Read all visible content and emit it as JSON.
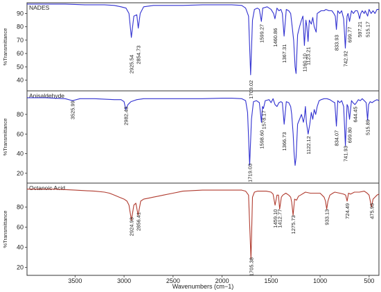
{
  "chart_data": [
    {
      "type": "line",
      "title": "NADES",
      "ylabel": "%Transmittance",
      "xlim": [
        3990,
        400
      ],
      "ylim": [
        32,
        98
      ],
      "yticks": [
        40,
        50,
        60,
        70,
        80,
        90
      ],
      "color": "#3030d0",
      "peaks": [
        {
          "x": 2925.54,
          "y": 59,
          "label": "2925.54"
        },
        {
          "x": 2854.73,
          "y": 66,
          "label": "2854.73"
        },
        {
          "x": 1709.02,
          "y": 40,
          "label": "1709.02"
        },
        {
          "x": 1599.27,
          "y": 82,
          "label": "1599.27"
        },
        {
          "x": 1460.86,
          "y": 79,
          "label": "1460.86"
        },
        {
          "x": 1367.31,
          "y": 67,
          "label": "1367.31"
        },
        {
          "x": 1160.1,
          "y": 60,
          "label": "1160.10"
        },
        {
          "x": 1123.21,
          "y": 65,
          "label": "1123.21"
        },
        {
          "x": 833.93,
          "y": 74,
          "label": "833.93"
        },
        {
          "x": 742.92,
          "y": 62,
          "label": "742.92"
        },
        {
          "x": 699.77,
          "y": 80,
          "label": "699.77"
        },
        {
          "x": 597.21,
          "y": 84,
          "label": "597.21"
        },
        {
          "x": 515.17,
          "y": 84,
          "label": "515.17"
        }
      ],
      "x": [
        3990,
        3800,
        3600,
        3400,
        3200,
        3100,
        3030,
        2980,
        2950,
        2925.54,
        2900,
        2870,
        2854.73,
        2835,
        2800,
        2700,
        2600,
        2400,
        2200,
        2000,
        1900,
        1800,
        1760,
        1730,
        1709.02,
        1690,
        1670,
        1640,
        1620,
        1599.27,
        1585,
        1540,
        1500,
        1475,
        1460.86,
        1440,
        1420,
        1400,
        1385,
        1367.31,
        1345,
        1320,
        1300,
        1285,
        1270,
        1255,
        1245,
        1230,
        1210,
        1190,
        1175,
        1160.1,
        1145,
        1135,
        1123.21,
        1110,
        1090,
        1075,
        1060,
        1040,
        1030,
        1010,
        990,
        960,
        940,
        910,
        880,
        860,
        845,
        833.93,
        820,
        800,
        780,
        760,
        742.92,
        725,
        715,
        699.77,
        680,
        660,
        640,
        620,
        610,
        597.21,
        585,
        570,
        550,
        540,
        515.17,
        500,
        480,
        460,
        440,
        420,
        400
      ],
      "values": [
        97,
        97,
        97,
        96.5,
        96.5,
        96,
        95,
        94,
        90,
        72,
        88,
        89,
        79,
        90,
        95,
        96,
        96,
        96,
        96.5,
        96.5,
        96.5,
        96,
        94,
        88,
        44,
        85,
        93,
        94,
        93,
        84,
        94,
        95,
        93,
        90,
        86,
        94,
        92,
        93,
        90,
        73,
        93,
        92,
        90,
        80,
        70,
        50,
        45,
        74,
        80,
        85,
        88,
        66,
        85,
        80,
        69,
        85,
        82,
        87,
        80,
        76,
        90,
        91,
        92,
        92,
        93,
        92,
        92,
        90,
        88,
        78,
        92,
        90,
        92,
        86,
        64,
        88,
        90,
        84,
        92,
        90,
        92,
        92,
        90,
        86,
        90,
        92,
        90,
        92,
        88,
        93,
        90,
        92,
        90,
        93,
        93
      ]
    },
    {
      "type": "line",
      "title": "Anisaldehyde",
      "ylabel": "%Transmittance",
      "xlim": [
        3990,
        400
      ],
      "ylim": [
        10,
        104
      ],
      "yticks": [
        20,
        40,
        60,
        80
      ],
      "color": "#3030d0",
      "peaks": [
        {
          "x": 3525.99,
          "y": 94,
          "label": "3525.99"
        },
        {
          "x": 2982.43,
          "y": 88,
          "label": "2982.43"
        },
        {
          "x": 1719.03,
          "y": 30,
          "label": "1719.03"
        },
        {
          "x": 1598.6,
          "y": 64,
          "label": "1598.60"
        },
        {
          "x": 1578.17,
          "y": 84,
          "label": "1578.17"
        },
        {
          "x": 1366.73,
          "y": 62,
          "label": "1366.73"
        },
        {
          "x": 1122.12,
          "y": 58,
          "label": "1122.12"
        },
        {
          "x": 834.07,
          "y": 64,
          "label": "834.07"
        },
        {
          "x": 741.93,
          "y": 48,
          "label": "741.93"
        },
        {
          "x": 699.8,
          "y": 67,
          "label": "699.80"
        },
        {
          "x": 644.45,
          "y": 88,
          "label": "644.45"
        },
        {
          "x": 515.89,
          "y": 75,
          "label": "515.89"
        }
      ],
      "x": [
        3990,
        3800,
        3600,
        3525.99,
        3450,
        3300,
        3100,
        3030,
        3000,
        2982.43,
        2960,
        2930,
        2900,
        2870,
        2800,
        2700,
        2600,
        2400,
        2200,
        2000,
        1900,
        1800,
        1760,
        1740,
        1719.03,
        1700,
        1680,
        1650,
        1620,
        1598.6,
        1588,
        1578.17,
        1560,
        1520,
        1500,
        1480,
        1460,
        1440,
        1420,
        1400,
        1385,
        1366.73,
        1345,
        1320,
        1300,
        1290,
        1275,
        1265,
        1255,
        1245,
        1230,
        1210,
        1190,
        1170,
        1160,
        1150,
        1140,
        1122.12,
        1105,
        1090,
        1075,
        1060,
        1045,
        1030,
        1010,
        990,
        960,
        930,
        900,
        870,
        850,
        834.07,
        820,
        800,
        780,
        760,
        741.93,
        725,
        715,
        699.8,
        680,
        665,
        644.45,
        630,
        610,
        590,
        570,
        550,
        530,
        515.89,
        505,
        490,
        470,
        440,
        420,
        400
      ],
      "values": [
        97,
        97,
        96,
        94,
        96,
        96,
        95,
        95,
        93,
        85,
        90,
        93,
        94,
        95,
        96,
        96,
        96,
        96,
        96,
        96.5,
        96.5,
        96,
        94,
        82,
        28,
        75,
        93,
        94,
        92,
        72,
        88,
        86,
        94,
        95,
        92,
        96,
        90,
        88,
        92,
        93,
        92,
        70,
        93,
        92,
        88,
        80,
        60,
        40,
        28,
        36,
        70,
        75,
        80,
        72,
        78,
        88,
        72,
        60,
        70,
        82,
        75,
        85,
        80,
        88,
        94,
        95,
        96,
        96,
        95,
        93,
        92,
        68,
        94,
        92,
        94,
        88,
        48,
        90,
        88,
        75,
        94,
        92,
        90,
        92,
        95,
        94,
        96,
        94,
        92,
        74,
        90,
        93,
        92,
        94,
        95,
        94
      ]
    },
    {
      "type": "line",
      "title": "Octanoic Acid",
      "ylabel": "%Transmittance",
      "xlim": [
        3990,
        400
      ],
      "ylim": [
        12,
        104
      ],
      "yticks": [
        20,
        40,
        60,
        80
      ],
      "color": "#b03a2e",
      "peaks": [
        {
          "x": 2924.93,
          "y": 70,
          "label": "2924.93"
        },
        {
          "x": 2856.41,
          "y": 75,
          "label": "2856.41"
        },
        {
          "x": 1705.38,
          "y": 30,
          "label": "1705.38"
        },
        {
          "x": 1459.1,
          "y": 78,
          "label": "1459.10"
        },
        {
          "x": 1412.77,
          "y": 78,
          "label": "1412.77"
        },
        {
          "x": 1275.73,
          "y": 72,
          "label": "1275.73"
        },
        {
          "x": 933.13,
          "y": 78,
          "label": "933.13"
        },
        {
          "x": 724.49,
          "y": 84,
          "label": "724.49"
        },
        {
          "x": 475.93,
          "y": 84,
          "label": "475.93"
        }
      ],
      "x": [
        3990,
        3700,
        3500,
        3300,
        3200,
        3150,
        3100,
        3050,
        3000,
        2970,
        2950,
        2924.93,
        2900,
        2880,
        2856.41,
        2830,
        2800,
        2750,
        2700,
        2650,
        2600,
        2500,
        2400,
        2200,
        2000,
        1900,
        1800,
        1760,
        1730,
        1705.38,
        1690,
        1670,
        1640,
        1600,
        1550,
        1500,
        1480,
        1459.1,
        1440,
        1425,
        1412.77,
        1395,
        1380,
        1350,
        1320,
        1300,
        1290,
        1275.73,
        1260,
        1240,
        1220,
        1200,
        1150,
        1100,
        1050,
        1000,
        960,
        945,
        933.13,
        920,
        900,
        870,
        850,
        800,
        760,
        740,
        724.49,
        710,
        690,
        650,
        600,
        550,
        520,
        500,
        475.93,
        460,
        440,
        420,
        400
      ],
      "values": [
        98,
        98,
        97,
        96,
        95,
        94,
        92,
        90,
        88,
        86,
        82,
        67,
        82,
        84,
        72,
        86,
        88,
        89,
        90,
        91,
        92,
        94,
        96,
        97,
        97,
        97,
        97,
        96,
        92,
        28,
        90,
        95,
        96,
        96,
        96,
        95,
        93,
        82,
        92,
        92,
        78,
        90,
        92,
        94,
        92,
        90,
        85,
        72,
        88,
        87,
        91,
        92,
        95,
        94,
        94,
        94,
        90,
        86,
        78,
        86,
        92,
        94,
        95,
        94,
        93,
        92,
        86,
        94,
        93,
        95,
        95,
        96,
        94,
        92,
        80,
        88,
        90,
        92,
        93
      ]
    }
  ],
  "xaxis": {
    "label": "Wavenumbers (cm−1)",
    "ticks": [
      3500,
      3000,
      2500,
      2000,
      1500,
      1000,
      500
    ]
  }
}
